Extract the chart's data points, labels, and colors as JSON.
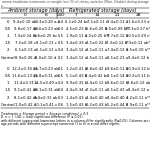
{
  "title_line1": "amma irradiation treatments on weight loss (%) of cherry varieties (Misri, Double) during storage",
  "title_line2": "s.",
  "col_headers_ambient": "Ambient storage (days)",
  "col_headers_refrig": "Refrigerated storage (days)",
  "sub_headers": [
    "0",
    "8",
    "LSD",
    "7",
    "14",
    "21",
    "28"
  ],
  "section1_rows": [
    [
      "9.4±0.10 a-c",
      "10.3±0.20 a-c",
      "0.4",
      "6.1±0.24 bc",
      "7.1±0.11 c",
      "9.4±0.11 c",
      "11.6±0.23 a*"
    ],
    [
      "9.8±0.17 ab",
      "10.6±0.23 ab",
      "0.3",
      "4.5±0.23 b",
      "5.6±0.25 b",
      "9.5±0.09 b**",
      "10.3±0.27 b**"
    ],
    [
      "7.3±0.14 bc",
      "9.6±0.25 bc",
      "5.5",
      "1.9±0.11 a",
      "0.2±0.25 b**",
      "8.7±0.12 b",
      "10.5±0.29 c*"
    ],
    [
      "7.2±0.18 c",
      "8.1±0.13 c",
      "0.5",
      "3.4±0.33 a",
      "3.1±0.22 b",
      "7.3±0.12 c*",
      "9.3±0.11 ab**"
    ],
    [
      "6.1±0.13 a",
      "6.1±0.11 a",
      "0.4",
      "3.4±0.12 a",
      "3.1±0.11 a",
      "7.4±0.12 a",
      "9.5±0.10 a**"
    ],
    [
      "8.9±0.26 d",
      "8.0±0.10 d",
      "0.1",
      "3.4±0.12 a",
      "1.5±0.11 a",
      "8.1±0.21 a",
      "9.4±0.12 b"
    ]
  ],
  "section2_rows": [
    [
      "12.2±0.34 ab",
      "11.7±0.23 ab",
      "0.1",
      "1.2±0.41 b",
      "8.8±0.42 b",
      "9.6±0.11 b",
      "10.9±0.12 b*"
    ],
    [
      "11.6±0.13 ab",
      "11.8±0.11 ab",
      "0.5",
      "5.1±0.43 b",
      "8.4±0.42 bc",
      "9.1±0.14 b",
      "10.2±0.11 b*"
    ],
    [
      "11.4±0.31 a",
      "11.5±0.40 a",
      "0.4",
      "9.9±0.31 b",
      "1.4±0.12 b",
      "8.6±0.12 b",
      "9.8±0.12 ab"
    ],
    [
      "9.1±0.41 ab",
      "10.1±0.31 ab",
      "0.4",
      "4.4±0.34 a",
      "7.2±0.11 a",
      "8.1±0.43 a",
      "8.4±0.12 a"
    ],
    [
      "8.1±0.42 ab",
      "9.4±0.31 ab",
      "0.3",
      "1.4±0.43 a",
      "3.4±0.40 a",
      "8.4±0.40 a",
      "7.2±0.11 a**"
    ],
    [
      "1.0±0.42 c",
      "10.1±0.41 c",
      "0.6",
      "1.5±0.43 b",
      "0.2±0.43 b",
      "5.2±0.44 b",
      "7.9±0.11 a**"
    ]
  ],
  "footer1": "Treatments × Storage period × Storage conditions) = 0.3",
  "footer2": "D. n = 1. LSD = least significant difference (P ≤ 0.05).",
  "footer3": "with different superscript lowercase letters in a column differ significantly (P≤0.05). Columns are i",
  "footer4": "age periods with different superscript numerical (1 to 4) in a row differ signific",
  "bg_color": "#ffffff",
  "line_color": "#000000",
  "font_size": 3.2,
  "header_font_size": 3.5
}
